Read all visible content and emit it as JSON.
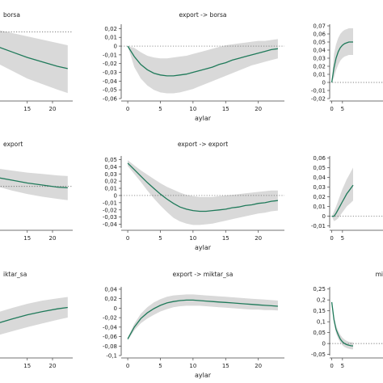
{
  "chart_data": [
    {
      "type": "area",
      "title": "borsa",
      "title_partial": true,
      "xlabel": "",
      "yticks": [],
      "yticklabels": [],
      "xticks": [
        15,
        20
      ],
      "xlim": [
        0,
        24
      ],
      "ylim": [
        -0.06,
        0.02
      ],
      "zero_line": true,
      "x": [
        0,
        3,
        6,
        9,
        12,
        15,
        18,
        21,
        23
      ],
      "y": [
        0.002,
        -0.003,
        -0.008,
        -0.013,
        -0.018,
        -0.023,
        -0.027,
        -0.031,
        -0.033
      ],
      "lower": [
        -0.005,
        -0.012,
        -0.02,
        -0.028,
        -0.035,
        -0.042,
        -0.047,
        -0.052,
        -0.055
      ],
      "upper": [
        0.009,
        0.006,
        0.004,
        0.002,
        -0.001,
        -0.004,
        -0.007,
        -0.01,
        -0.012
      ]
    },
    {
      "type": "area",
      "title": "export -> borsa",
      "xlabel": "aylar",
      "yticks": [
        0.02,
        0.01,
        0,
        -0.01,
        -0.02,
        -0.03,
        -0.04,
        -0.05,
        -0.06
      ],
      "yticklabels": [
        "0,02",
        "0,01",
        "0",
        "-0,01",
        "-0,02",
        "-0,03",
        "-0,04",
        "-0,05",
        "-0,06"
      ],
      "xticks": [
        0,
        5,
        10,
        15,
        20
      ],
      "xlim": [
        -1,
        24
      ],
      "ylim": [
        -0.06,
        0.025
      ],
      "zero_line": true,
      "x": [
        0,
        1,
        2,
        3,
        4,
        5,
        6,
        7,
        8,
        9,
        10,
        11,
        12,
        13,
        14,
        15,
        16,
        17,
        18,
        19,
        20,
        21,
        22,
        23
      ],
      "y": [
        0,
        -0.012,
        -0.021,
        -0.027,
        -0.031,
        -0.033,
        -0.034,
        -0.034,
        -0.033,
        -0.032,
        -0.03,
        -0.028,
        -0.026,
        -0.024,
        -0.021,
        -0.019,
        -0.016,
        -0.014,
        -0.012,
        -0.01,
        -0.008,
        -0.006,
        -0.004,
        -0.003
      ],
      "lower": [
        0,
        -0.024,
        -0.037,
        -0.045,
        -0.05,
        -0.053,
        -0.054,
        -0.054,
        -0.053,
        -0.051,
        -0.049,
        -0.046,
        -0.043,
        -0.04,
        -0.037,
        -0.034,
        -0.031,
        -0.028,
        -0.025,
        -0.022,
        -0.02,
        -0.018,
        -0.016,
        -0.014
      ],
      "upper": [
        0,
        -0.002,
        -0.007,
        -0.011,
        -0.013,
        -0.014,
        -0.014,
        -0.013,
        -0.012,
        -0.011,
        -0.009,
        -0.007,
        -0.005,
        -0.003,
        -0.001,
        0.001,
        0.002,
        0.003,
        0.004,
        0.005,
        0.006,
        0.006,
        0.007,
        0.008
      ]
    },
    {
      "type": "area",
      "title": "",
      "xlabel": "",
      "yticks": [
        0.07,
        0.06,
        0.05,
        0.04,
        0.03,
        0.02,
        0.01,
        0,
        -0.01,
        -0.02
      ],
      "yticklabels": [
        "0,07",
        "0,06",
        "0,05",
        "0,04",
        "0,03",
        "0,02",
        "0,01",
        "0",
        "-0,01",
        "-0,02"
      ],
      "xticks": [
        0,
        5
      ],
      "xlim": [
        -1,
        24
      ],
      "ylim": [
        -0.02,
        0.072
      ],
      "zero_line": true,
      "x": [
        0,
        1,
        2,
        3,
        4,
        5,
        6,
        7,
        8,
        9,
        10
      ],
      "y": [
        0,
        0.018,
        0.03,
        0.038,
        0.043,
        0.046,
        0.048,
        0.049,
        0.05,
        0.05,
        0.05
      ],
      "lower": [
        0,
        0.006,
        0.015,
        0.022,
        0.027,
        0.03,
        0.032,
        0.033,
        0.034,
        0.034,
        0.034
      ],
      "upper": [
        0,
        0.035,
        0.047,
        0.055,
        0.06,
        0.063,
        0.065,
        0.066,
        0.067,
        0.067,
        0.067
      ]
    },
    {
      "type": "area",
      "title": "export",
      "title_partial": true,
      "xlabel": "",
      "yticks": [],
      "yticklabels": [],
      "xticks": [
        15,
        20
      ],
      "xlim": [
        0,
        24
      ],
      "ylim": [
        -0.06,
        0.05
      ],
      "zero_line": true,
      "x": [
        0,
        3,
        6,
        9,
        12,
        15,
        18,
        21,
        23
      ],
      "y": [
        0.028,
        0.023,
        0.018,
        0.013,
        0.009,
        0.005,
        0.002,
        -0.001,
        -0.002
      ],
      "lower": [
        0.018,
        0.012,
        0.006,
        0,
        -0.006,
        -0.011,
        -0.015,
        -0.018,
        -0.02
      ],
      "upper": [
        0.038,
        0.034,
        0.03,
        0.026,
        0.023,
        0.02,
        0.018,
        0.016,
        0.015
      ]
    },
    {
      "type": "area",
      "title": "export -> export",
      "xlabel": "aylar",
      "yticks": [
        0.05,
        0.04,
        0.03,
        0.02,
        0.01,
        0,
        -0.01,
        -0.02,
        -0.03,
        -0.04
      ],
      "yticklabels": [
        "0,05",
        "0,04",
        "0,03",
        "0,02",
        "0,01",
        "0",
        "-0,01",
        "-0,02",
        "-0,03",
        "-0,04"
      ],
      "xticks": [
        0,
        5,
        10,
        15,
        20
      ],
      "xlim": [
        -1,
        24
      ],
      "ylim": [
        -0.045,
        0.055
      ],
      "zero_line": true,
      "x": [
        0,
        1,
        2,
        3,
        4,
        5,
        6,
        7,
        8,
        9,
        10,
        11,
        12,
        13,
        14,
        15,
        16,
        17,
        18,
        19,
        20,
        21,
        22,
        23
      ],
      "y": [
        0.045,
        0.036,
        0.027,
        0.018,
        0.01,
        0.002,
        -0.005,
        -0.011,
        -0.016,
        -0.019,
        -0.021,
        -0.022,
        -0.022,
        -0.021,
        -0.02,
        -0.019,
        -0.017,
        -0.016,
        -0.014,
        -0.013,
        -0.011,
        -0.01,
        -0.008,
        -0.007
      ],
      "lower": [
        0.041,
        0.03,
        0.019,
        0.007,
        -0.004,
        -0.014,
        -0.023,
        -0.031,
        -0.036,
        -0.039,
        -0.041,
        -0.041,
        -0.04,
        -0.039,
        -0.037,
        -0.035,
        -0.033,
        -0.031,
        -0.029,
        -0.027,
        -0.025,
        -0.024,
        -0.022,
        -0.021
      ],
      "upper": [
        0.049,
        0.042,
        0.035,
        0.029,
        0.023,
        0.017,
        0.012,
        0.008,
        0.004,
        0.001,
        -0.001,
        -0.002,
        -0.002,
        -0.002,
        -0.001,
        0,
        0.001,
        0.002,
        0.003,
        0.004,
        0.005,
        0.006,
        0.007,
        0.007
      ]
    },
    {
      "type": "area",
      "title": "",
      "xlabel": "",
      "yticks": [
        0.06,
        0.05,
        0.04,
        0.03,
        0.02,
        0.01,
        0,
        -0.01
      ],
      "yticklabels": [
        "0,06",
        "0,05",
        "0,04",
        "0,03",
        "0,02",
        "0,01",
        "0",
        "-0,01"
      ],
      "xticks": [
        0,
        5
      ],
      "xlim": [
        -1,
        24
      ],
      "ylim": [
        -0.012,
        0.062
      ],
      "zero_line": true,
      "x": [
        0,
        1,
        2,
        3,
        4,
        5,
        6,
        7,
        8,
        9,
        10
      ],
      "y": [
        0,
        0,
        0.003,
        0.007,
        0.011,
        0.015,
        0.019,
        0.023,
        0.026,
        0.029,
        0.032
      ],
      "lower": [
        0,
        -0.005,
        -0.004,
        -0.002,
        0.001,
        0.004,
        0.007,
        0.01,
        0.012,
        0.014,
        0.016
      ],
      "upper": [
        0,
        0.005,
        0.01,
        0.016,
        0.022,
        0.028,
        0.033,
        0.038,
        0.042,
        0.046,
        0.05
      ]
    },
    {
      "type": "area",
      "title": "iktar_sa",
      "title_partial": true,
      "xlabel": "",
      "yticks": [],
      "yticklabels": [],
      "xticks": [
        15,
        20
      ],
      "xlim": [
        0,
        24
      ],
      "ylim": [
        -0.1,
        0.05
      ],
      "zero_line": false,
      "x": [
        0,
        3,
        6,
        9,
        12,
        15,
        18,
        21,
        23
      ],
      "y": [
        -0.06,
        -0.05,
        -0.04,
        -0.03,
        -0.02,
        -0.011,
        -0.004,
        0.002,
        0.005
      ],
      "lower": [
        -0.08,
        -0.072,
        -0.064,
        -0.056,
        -0.047,
        -0.038,
        -0.03,
        -0.022,
        -0.017
      ],
      "upper": [
        -0.04,
        -0.028,
        -0.016,
        -0.006,
        0.004,
        0.013,
        0.02,
        0.025,
        0.028
      ]
    },
    {
      "type": "area",
      "title": "export -> miktar_sa",
      "xlabel": "aylar",
      "yticks": [
        0.04,
        0.02,
        0,
        -0.02,
        -0.04,
        -0.06,
        -0.08,
        -0.1
      ],
      "yticklabels": [
        "0,04",
        "0,02",
        "0",
        "-0,02",
        "-0,04",
        "-0,06",
        "-0,08",
        "-0,1"
      ],
      "xticks": [
        0,
        5,
        10,
        15,
        20
      ],
      "xlim": [
        -1,
        24
      ],
      "ylim": [
        -0.1,
        0.045
      ],
      "zero_line": false,
      "x": [
        0,
        1,
        2,
        3,
        4,
        5,
        6,
        7,
        8,
        9,
        10,
        11,
        12,
        13,
        14,
        15,
        16,
        17,
        18,
        19,
        20,
        21,
        22,
        23
      ],
      "y": [
        -0.065,
        -0.04,
        -0.022,
        -0.01,
        -0.001,
        0.006,
        0.011,
        0.014,
        0.016,
        0.017,
        0.017,
        0.016,
        0.015,
        0.014,
        0.013,
        0.012,
        0.011,
        0.01,
        0.009,
        0.008,
        0.007,
        0.006,
        0.005,
        0.004
      ],
      "lower": [
        -0.068,
        -0.047,
        -0.032,
        -0.022,
        -0.014,
        -0.007,
        -0.002,
        0.002,
        0.004,
        0.005,
        0.005,
        0.005,
        0.004,
        0.003,
        0.002,
        0.001,
        0,
        -0.001,
        -0.002,
        -0.003,
        -0.003,
        -0.004,
        -0.004,
        -0.005
      ],
      "upper": [
        -0.062,
        -0.033,
        -0.012,
        0.002,
        0.012,
        0.019,
        0.024,
        0.027,
        0.028,
        0.029,
        0.029,
        0.028,
        0.027,
        0.026,
        0.025,
        0.024,
        0.023,
        0.022,
        0.021,
        0.02,
        0.019,
        0.018,
        0.017,
        0.016
      ]
    },
    {
      "type": "area",
      "title": "mi",
      "title_partial": true,
      "xlabel": "",
      "yticks": [
        0.25,
        0.2,
        0.15,
        0.1,
        0.05,
        0,
        -0.05
      ],
      "yticklabels": [
        "0,25",
        "0,2",
        "0,15",
        "0,1",
        "0,05",
        "0",
        "-0,05"
      ],
      "xticks": [
        0,
        5
      ],
      "xlim": [
        -1,
        24
      ],
      "ylim": [
        -0.055,
        0.26
      ],
      "zero_line": true,
      "x": [
        0,
        1,
        2,
        3,
        4,
        5,
        6,
        7,
        8,
        9,
        10
      ],
      "y": [
        0.19,
        0.11,
        0.065,
        0.04,
        0.02,
        0.008,
        0,
        -0.005,
        -0.008,
        -0.01,
        -0.011
      ],
      "lower": [
        0.18,
        0.095,
        0.048,
        0.022,
        0.005,
        -0.008,
        -0.016,
        -0.021,
        -0.024,
        -0.026,
        -0.027
      ],
      "upper": [
        0.2,
        0.125,
        0.082,
        0.058,
        0.04,
        0.027,
        0.018,
        0.012,
        0.008,
        0.006,
        0.005
      ]
    }
  ],
  "colors": {
    "line": "#1f7a5a",
    "band": "#d9d9d9",
    "axis": "#444444",
    "zero": "#555555"
  }
}
